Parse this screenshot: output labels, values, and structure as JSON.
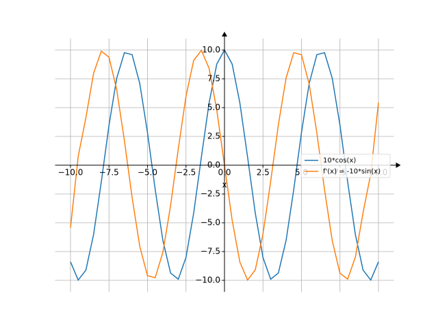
{
  "chart_data": {
    "type": "line",
    "xlabel": "x",
    "x": [
      -10,
      -9.5,
      -9,
      -8.5,
      -8,
      -7.5,
      -7,
      -6.5,
      -6,
      -5.5,
      -5,
      -4.5,
      -4,
      -3.5,
      -3,
      -2.5,
      -2,
      -1.5,
      -1,
      -0.5,
      0,
      0.5,
      1,
      1.5,
      2,
      2.5,
      3,
      3.5,
      4,
      4.5,
      5,
      5.5,
      6,
      6.5,
      7,
      7.5,
      8,
      8.5,
      9,
      9.5,
      10
    ],
    "series": [
      {
        "name": "10*cos(x)",
        "color": "#1f77b4",
        "values": [
          -8.391,
          -9.972,
          -9.111,
          -6.02,
          -1.455,
          3.466,
          7.539,
          9.766,
          9.602,
          7.087,
          2.837,
          -2.108,
          -6.536,
          -9.365,
          -9.9,
          -8.011,
          -4.161,
          0.707,
          5.403,
          8.776,
          10,
          8.776,
          5.403,
          0.707,
          -4.161,
          -8.011,
          -9.9,
          -9.365,
          -6.536,
          -2.108,
          2.837,
          7.087,
          9.602,
          9.766,
          7.539,
          3.466,
          -1.455,
          -6.02,
          -9.111,
          -9.972,
          -8.391
        ]
      },
      {
        "name": "f'(x) = -10*sin(x)",
        "color": "#ff7f0e",
        "values": [
          -5.44,
          0.752,
          4.121,
          7.985,
          9.894,
          9.38,
          6.57,
          2.151,
          -2.794,
          -7.055,
          -9.589,
          -9.775,
          -7.568,
          -3.508,
          1.411,
          5.985,
          9.093,
          9.975,
          8.415,
          4.794,
          0,
          -4.794,
          -8.415,
          -9.975,
          -9.093,
          -5.985,
          -1.411,
          3.508,
          7.568,
          9.775,
          9.589,
          7.055,
          2.794,
          -2.151,
          -6.57,
          -9.38,
          -9.894,
          -7.985,
          -4.121,
          -0.752,
          5.44
        ]
      }
    ],
    "xlim": [
      -11,
      11
    ],
    "ylim": [
      -11,
      11
    ],
    "xticks": [
      {
        "value": -10,
        "label": "−10.0"
      },
      {
        "value": -7.5,
        "label": "−7.5"
      },
      {
        "value": -5,
        "label": "−5.0"
      },
      {
        "value": -2.5,
        "label": "−2.5"
      },
      {
        "value": 0,
        "label": "0.0"
      },
      {
        "value": 2.5,
        "label": "2.5"
      },
      {
        "value": 5,
        "label": "5.0"
      },
      {
        "value": 7.5,
        "label": "7.5"
      },
      {
        "value": 10,
        "label": "10.0"
      }
    ],
    "yticks": [
      {
        "value": -10,
        "label": "−10.0"
      },
      {
        "value": -7.5,
        "label": "−7.5"
      },
      {
        "value": -5,
        "label": "−5.0"
      },
      {
        "value": -2.5,
        "label": "−2.5"
      },
      {
        "value": 0,
        "label": "0.0"
      },
      {
        "value": 2.5,
        "label": "2.5"
      },
      {
        "value": 5,
        "label": "5.0"
      },
      {
        "value": 7.5,
        "label": "7.5"
      },
      {
        "value": 10,
        "label": "10.0"
      }
    ],
    "grid": true,
    "legend": "right"
  }
}
